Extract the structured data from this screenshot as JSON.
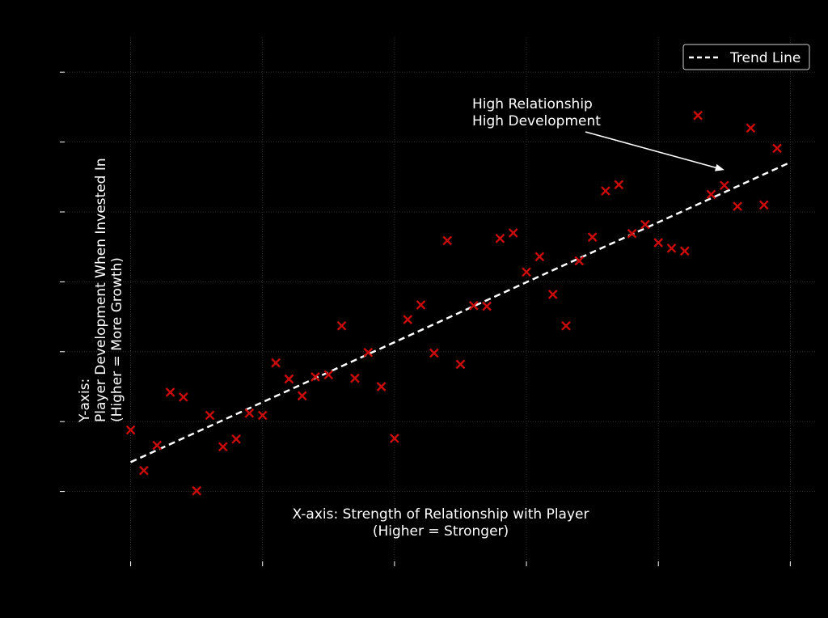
{
  "chart_data": {
    "type": "scatter",
    "title": "",
    "xlim": [
      0.5,
      6.2
    ],
    "ylim": [
      0.0,
      7.5
    ],
    "xticks": [
      1,
      2,
      3,
      4,
      5,
      6
    ],
    "yticks": [
      1,
      2,
      3,
      4,
      5,
      6,
      7
    ],
    "grid": true,
    "legend": {
      "position": "top-right",
      "entries": [
        "Trend Line"
      ]
    },
    "colors": {
      "background": "#000000",
      "markers": "#cc0b0b",
      "trend": "#ffffff",
      "text": "#ffffff"
    },
    "x_axis_annotation": [
      "X-axis: Strength of Relationship with Player",
      "(Higher = Stronger)"
    ],
    "y_axis_annotation": [
      "Y-axis:",
      "Player Development When Invested In",
      "(Higher = More Growth)"
    ],
    "callout": {
      "lines": [
        "High Relationship",
        "High Development"
      ],
      "points_to": [
        5.5,
        5.6
      ]
    },
    "series": [
      {
        "name": "",
        "marker": "x",
        "points": [
          [
            1.0,
            1.88
          ],
          [
            1.1,
            1.3
          ],
          [
            1.2,
            1.66
          ],
          [
            1.3,
            2.42
          ],
          [
            1.4,
            2.35
          ],
          [
            1.5,
            1.01
          ],
          [
            1.6,
            2.09
          ],
          [
            1.7,
            1.64
          ],
          [
            1.8,
            1.75
          ],
          [
            1.9,
            2.12
          ],
          [
            2.0,
            2.09
          ],
          [
            2.1,
            2.84
          ],
          [
            2.2,
            2.61
          ],
          [
            2.3,
            2.37
          ],
          [
            2.4,
            2.64
          ],
          [
            2.5,
            2.67
          ],
          [
            2.6,
            3.37
          ],
          [
            2.7,
            2.62
          ],
          [
            2.8,
            2.99
          ],
          [
            2.9,
            2.5
          ],
          [
            3.0,
            1.76
          ],
          [
            3.1,
            3.46
          ],
          [
            3.2,
            3.67
          ],
          [
            3.3,
            2.98
          ],
          [
            3.4,
            4.59
          ],
          [
            3.5,
            2.82
          ],
          [
            3.6,
            3.66
          ],
          [
            3.7,
            3.65
          ],
          [
            3.8,
            4.62
          ],
          [
            3.9,
            4.7
          ],
          [
            4.0,
            4.14
          ],
          [
            4.1,
            4.36
          ],
          [
            4.2,
            3.82
          ],
          [
            4.3,
            3.37
          ],
          [
            4.4,
            4.3
          ],
          [
            4.5,
            4.64
          ],
          [
            4.6,
            5.3
          ],
          [
            4.7,
            5.39
          ],
          [
            4.8,
            4.69
          ],
          [
            4.9,
            4.82
          ],
          [
            5.0,
            4.56
          ],
          [
            5.1,
            4.48
          ],
          [
            5.2,
            4.44
          ],
          [
            5.3,
            6.38
          ],
          [
            5.4,
            5.25
          ],
          [
            5.5,
            5.38
          ],
          [
            5.6,
            5.08
          ],
          [
            5.7,
            6.2
          ],
          [
            5.8,
            5.1
          ],
          [
            5.9,
            5.91
          ]
        ]
      }
    ],
    "trend_line": {
      "name": "Trend Line",
      "x": [
        1.0,
        6.0
      ],
      "y": [
        1.42,
        5.71
      ]
    }
  }
}
